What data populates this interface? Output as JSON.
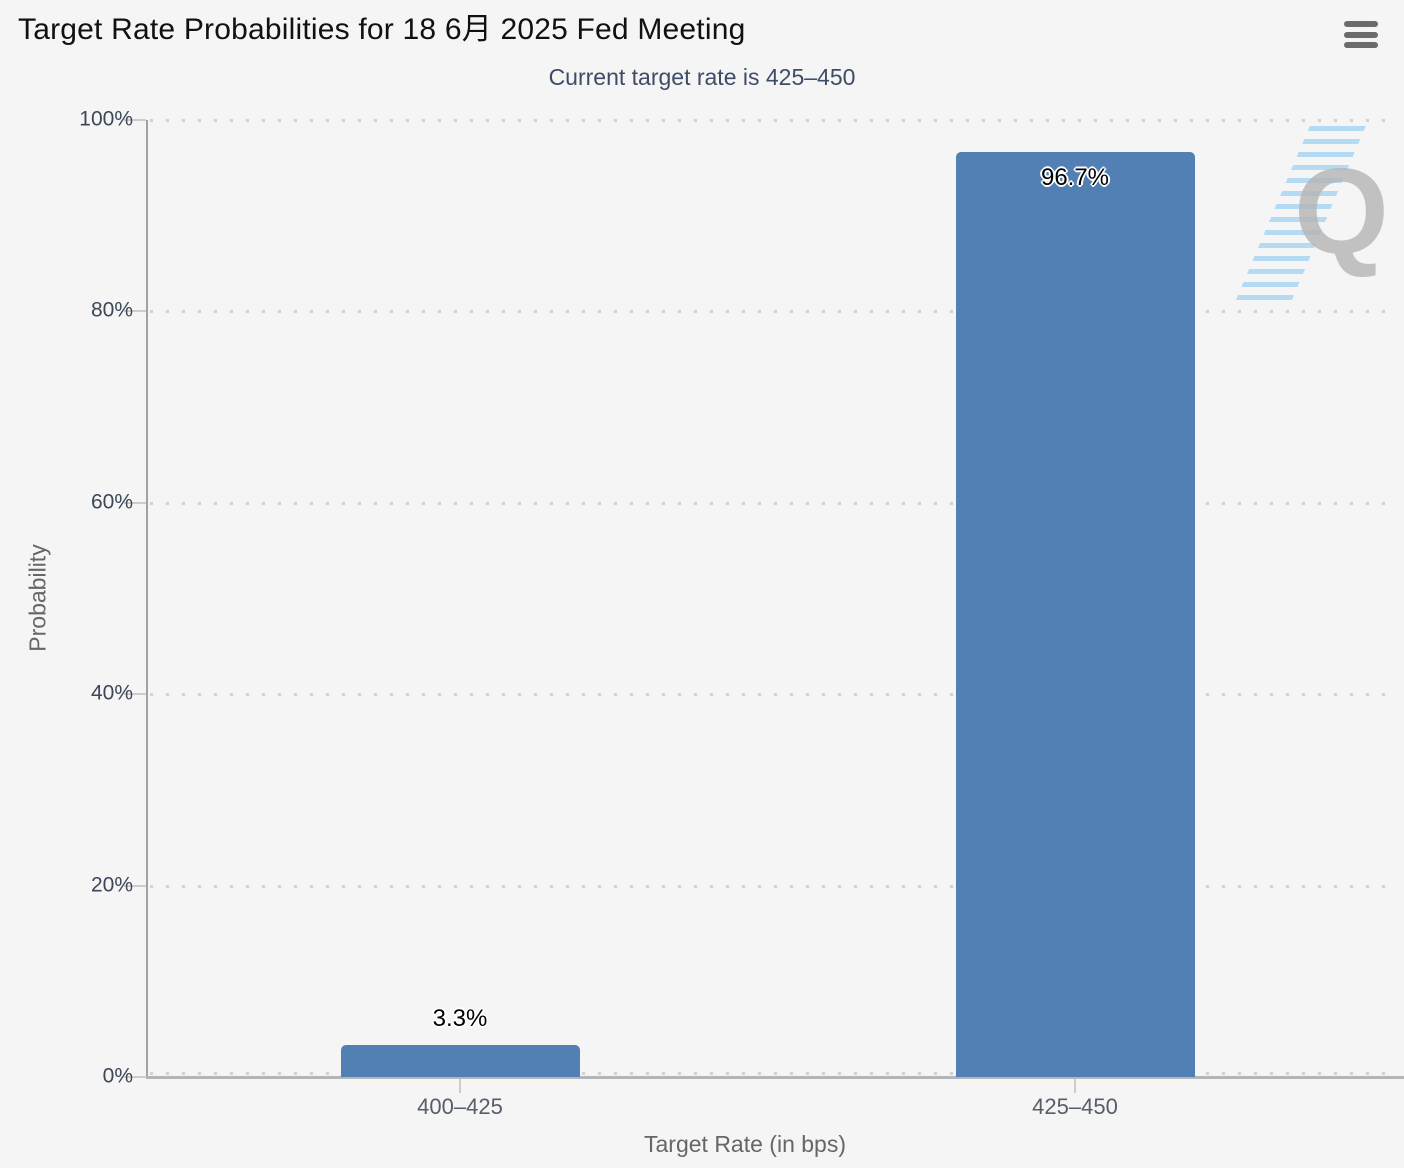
{
  "chart": {
    "menu_icon": "hamburger-menu-icon"
  },
  "chart_data": {
    "type": "bar",
    "title": "Target Rate Probabilities for 18 6月 2025 Fed Meeting",
    "subtitle": "Current target rate is 425–450",
    "categories": [
      "400–425",
      "425–450"
    ],
    "values": [
      3.3,
      96.7
    ],
    "value_labels": [
      "3.3%",
      "96.7%"
    ],
    "xlabel": "Target Rate (in bps)",
    "ylabel": "Probability",
    "ylim": [
      0,
      100
    ],
    "yticks": [
      0,
      20,
      40,
      60,
      80,
      100
    ],
    "ytick_labels": [
      "0%",
      "20%",
      "40%",
      "60%",
      "80%",
      "100%"
    ],
    "grid": "dotted-horizontal",
    "legend": "none",
    "bar_color": "#527FB4"
  },
  "watermark": {
    "letter": "Q"
  },
  "colors": {
    "background": "#F5F5F5",
    "bar": "#527FB4",
    "title_text": "#111111",
    "subtitle_text": "#3E4C66",
    "ytick_text": "#3C4758",
    "xtick_text": "#565E6A",
    "axis_title_text": "#666666",
    "axis_line": "#B3B5B8",
    "grid_dot": "#D2D2D2",
    "menu_icon": "#6B6B6B",
    "watermark_q": "#B5B5B5",
    "watermark_dashes": "#97CDF3"
  }
}
